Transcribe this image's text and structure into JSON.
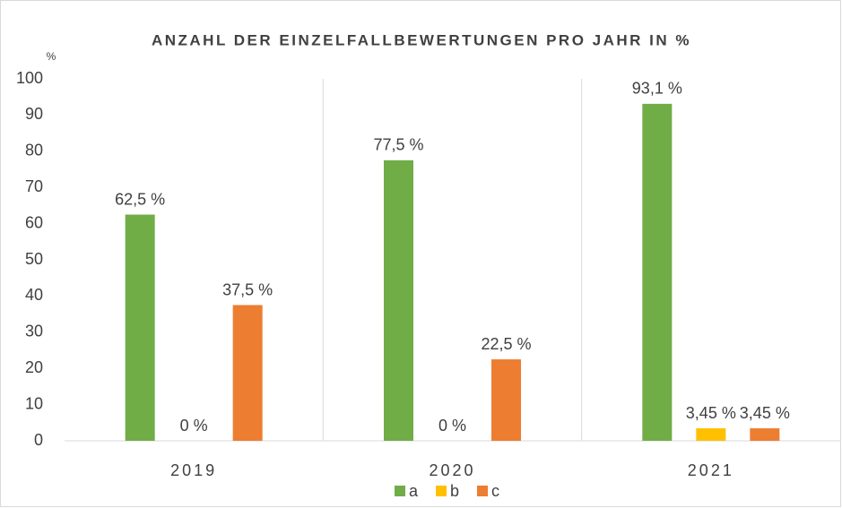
{
  "chart_data": {
    "type": "bar",
    "title": "ANZAHL DER EINZELFALLBEWERTUNGEN PRO JAHR IN %",
    "y_label": "%",
    "categories": [
      "2019",
      "2020",
      "2021"
    ],
    "series": [
      {
        "name": "a",
        "color": "#70ad47",
        "values": [
          62.5,
          77.5,
          93.1
        ],
        "value_labels": [
          "62,5 %",
          "77,5 %",
          "93,1 %"
        ]
      },
      {
        "name": "b",
        "color": "#ffc000",
        "values": [
          0,
          0,
          3.45
        ],
        "value_labels": [
          "0 %",
          "0 %",
          "3,45 %"
        ]
      },
      {
        "name": "c",
        "color": "#ed7d31",
        "values": [
          37.5,
          22.5,
          3.45
        ],
        "value_labels": [
          "37,5 %",
          "22,5 %",
          "3,45 %"
        ]
      }
    ],
    "ylim": [
      0,
      100
    ],
    "yticks": [
      0,
      10,
      20,
      30,
      40,
      50,
      60,
      70,
      80,
      90,
      100
    ],
    "grid": false,
    "legend": "bottom"
  }
}
